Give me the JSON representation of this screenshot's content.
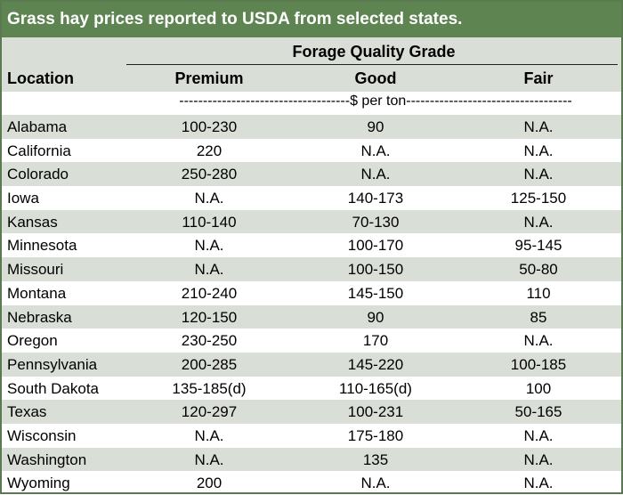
{
  "title": "Grass hay prices reported to USDA from selected states.",
  "header": {
    "group": "Forage Quality Grade",
    "location": "Location",
    "columns": [
      "Premium",
      "Good",
      "Fair"
    ]
  },
  "units": "------------------------------------$ per ton-----------------------------------",
  "rows": [
    {
      "location": "Alabama",
      "premium": "100-230",
      "good": "90",
      "fair": "N.A."
    },
    {
      "location": "California",
      "premium": "220",
      "good": "N.A.",
      "fair": "N.A."
    },
    {
      "location": "Colorado",
      "premium": "250-280",
      "good": "N.A.",
      "fair": "N.A."
    },
    {
      "location": "Iowa",
      "premium": "N.A.",
      "good": "140-173",
      "fair": "125-150"
    },
    {
      "location": "Kansas",
      "premium": "110-140",
      "good": "70-130",
      "fair": "N.A."
    },
    {
      "location": "Minnesota",
      "premium": "N.A.",
      "good": "100-170",
      "fair": "95-145"
    },
    {
      "location": "Missouri",
      "premium": "N.A.",
      "good": "100-150",
      "fair": "50-80"
    },
    {
      "location": "Montana",
      "premium": "210-240",
      "good": "145-150",
      "fair": "110"
    },
    {
      "location": "Nebraska",
      "premium": "120-150",
      "good": "90",
      "fair": "85"
    },
    {
      "location": "Oregon",
      "premium": "230-250",
      "good": "170",
      "fair": "N.A."
    },
    {
      "location": "Pennsylvania",
      "premium": "200-285",
      "good": "145-220",
      "fair": "100-185"
    },
    {
      "location": "South Dakota",
      "premium": "135-185(d)",
      "good": "110-165(d)",
      "fair": "100"
    },
    {
      "location": "Texas",
      "premium": "120-297",
      "good": "100-231",
      "fair": "50-165"
    },
    {
      "location": "Wisconsin",
      "premium": "N.A.",
      "good": "175-180",
      "fair": "N.A."
    },
    {
      "location": "Washington",
      "premium": "N.A.",
      "good": "135",
      "fair": "N.A."
    },
    {
      "location": "Wyoming",
      "premium": "200",
      "good": "N.A.",
      "fair": "N.A."
    }
  ],
  "colors": {
    "title_bg": "#5e8452",
    "shade_row": "#d9ded6",
    "border": "#5a7a50"
  }
}
